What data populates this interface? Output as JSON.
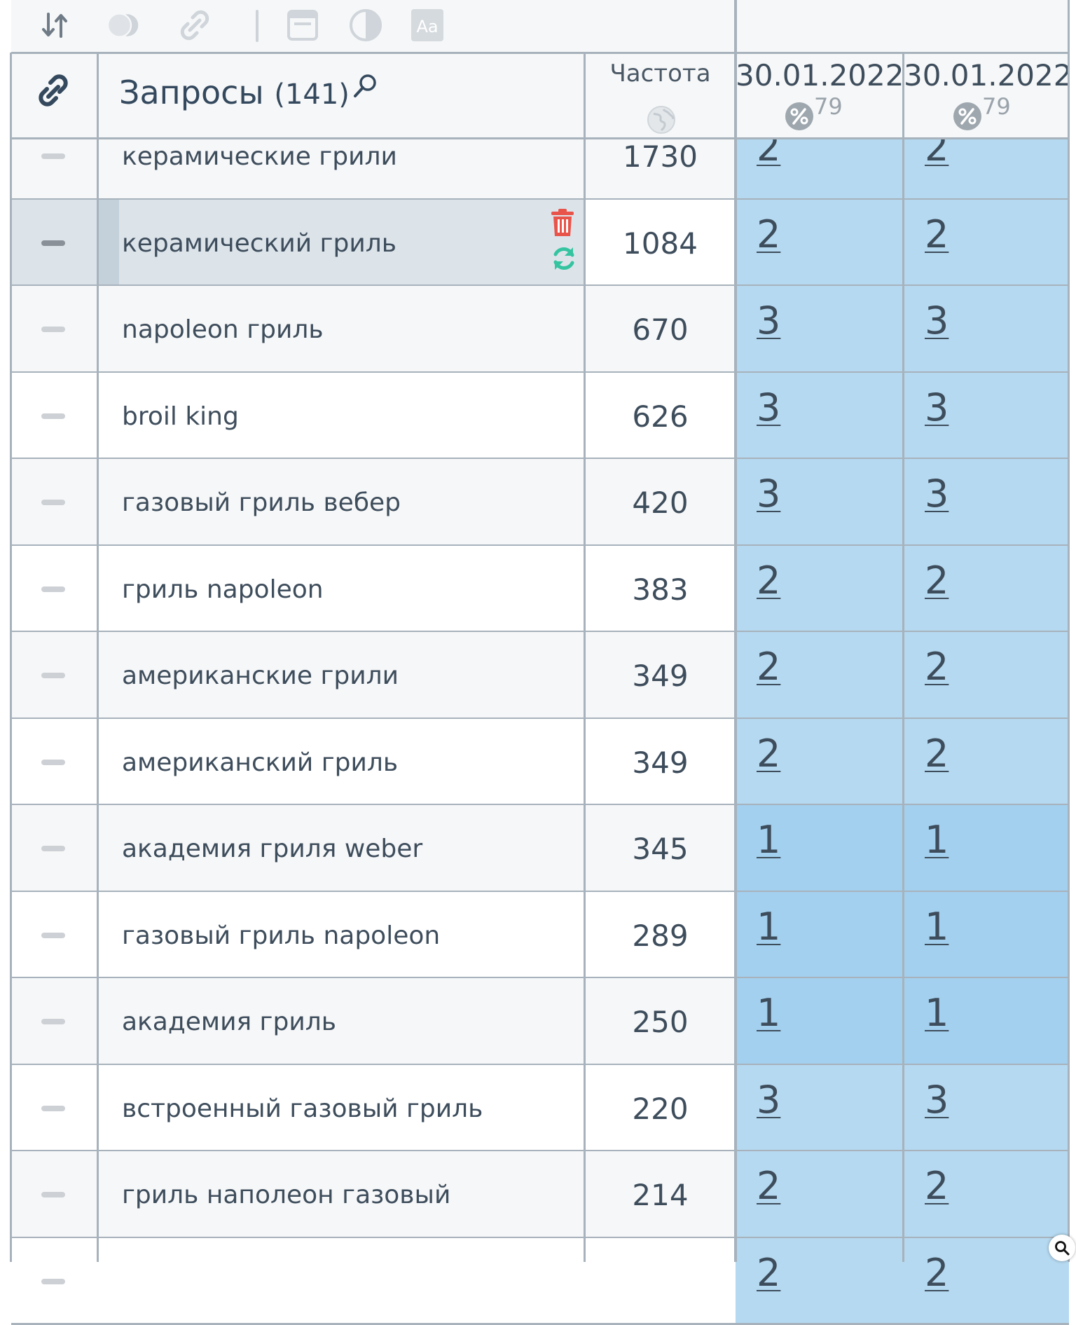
{
  "toolbar": {
    "icons": [
      "sort-icon",
      "toggle-circles-icon",
      "link-icon",
      "window-icon",
      "contrast-icon",
      "font-size-icon"
    ]
  },
  "header": {
    "query_title": "Запросы",
    "query_count": "(141)",
    "freq_title": "Частота",
    "dates": [
      {
        "label": "30.01.2022",
        "badge": "79"
      },
      {
        "label": "30.01.2022",
        "badge": "79"
      }
    ]
  },
  "rows": [
    {
      "query": "керамические грили",
      "freq": "1730",
      "p1": "2",
      "p2": "2"
    },
    {
      "query": "керамический гриль",
      "freq": "1084",
      "p1": "2",
      "p2": "2"
    },
    {
      "query": "napoleon гриль",
      "freq": "670",
      "p1": "3",
      "p2": "3"
    },
    {
      "query": "broil king",
      "freq": "626",
      "p1": "3",
      "p2": "3"
    },
    {
      "query": "газовый гриль вебер",
      "freq": "420",
      "p1": "3",
      "p2": "3"
    },
    {
      "query": "гриль napoleon",
      "freq": "383",
      "p1": "2",
      "p2": "2"
    },
    {
      "query": "американские грили",
      "freq": "349",
      "p1": "2",
      "p2": "2"
    },
    {
      "query": "американский гриль",
      "freq": "349",
      "p1": "2",
      "p2": "2"
    },
    {
      "query": "академия гриля weber",
      "freq": "345",
      "p1": "1",
      "p2": "1"
    },
    {
      "query": "газовый гриль napoleon",
      "freq": "289",
      "p1": "1",
      "p2": "1"
    },
    {
      "query": "академия гриль",
      "freq": "250",
      "p1": "1",
      "p2": "1"
    },
    {
      "query": "встроенный газовый гриль",
      "freq": "220",
      "p1": "3",
      "p2": "3"
    },
    {
      "query": "гриль наполеон газовый",
      "freq": "214",
      "p1": "2",
      "p2": "2"
    },
    {
      "query": "",
      "freq": "",
      "p1": "2",
      "p2": "2"
    }
  ],
  "colors": {
    "pos_1": "#a3d0ee",
    "pos_other": "#b5d9f0",
    "row_odd": "#f6f7f8",
    "row_even": "#ffffff",
    "selected_row": "#dce4ea",
    "delete": "#e8544a",
    "refresh": "#35c4a0"
  }
}
